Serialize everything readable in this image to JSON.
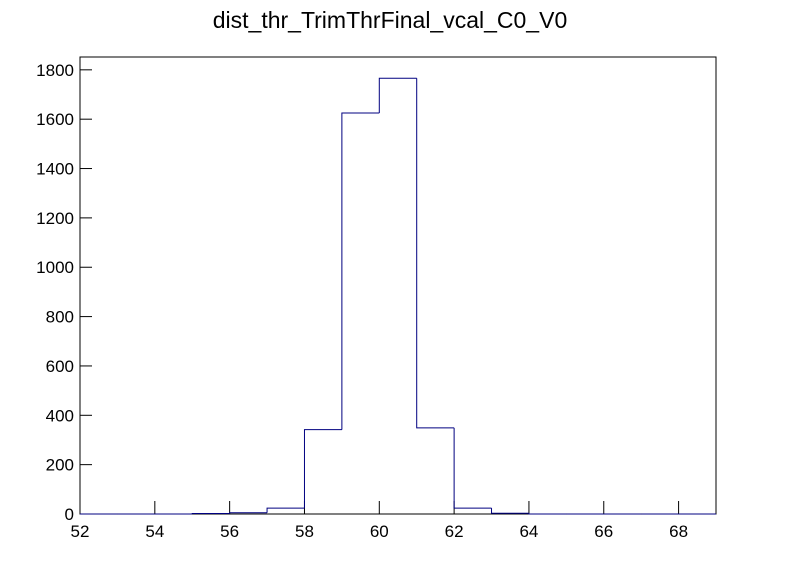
{
  "chart_data": {
    "type": "histogram",
    "title": "dist_thr_TrimThrFinal_vcal_C0_V0",
    "bins": [
      52,
      53,
      54,
      55,
      56,
      57,
      58,
      59,
      60,
      61,
      62,
      63,
      64,
      65,
      66,
      67,
      68,
      69
    ],
    "values": [
      0,
      0,
      0,
      2,
      5,
      24,
      342,
      1625,
      1766,
      349,
      24,
      3,
      0,
      0,
      0,
      0,
      0
    ],
    "color": "#000080",
    "xlim": [
      52,
      69
    ],
    "xticks": [
      52,
      54,
      56,
      58,
      60,
      62,
      64,
      66,
      68
    ],
    "ylim": [
      0,
      1852
    ],
    "yticks": [
      0,
      200,
      400,
      600,
      800,
      1000,
      1200,
      1400,
      1600,
      1800
    ]
  }
}
